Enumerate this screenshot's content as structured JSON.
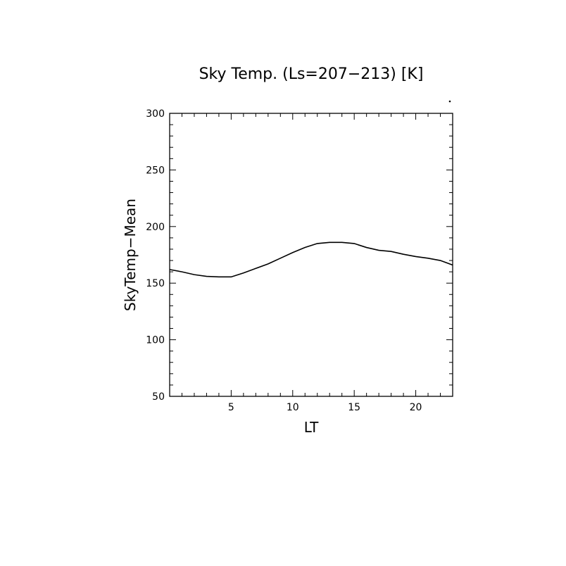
{
  "chart_data": {
    "type": "line",
    "title": "Sky Temp. (Ls=207−213) [K]",
    "xlabel": "LT",
    "ylabel": "SkyTemp−Mean",
    "xlim": [
      0,
      23
    ],
    "ylim": [
      50,
      300
    ],
    "xticks": [
      5,
      10,
      15,
      20
    ],
    "yticks": [
      50,
      100,
      150,
      200,
      250,
      300
    ],
    "grid": false,
    "series": [
      {
        "x": [
          0,
          1,
          2,
          3,
          4,
          5,
          6,
          7,
          8,
          9,
          10,
          11,
          12,
          13,
          14,
          15,
          16,
          17,
          18,
          19,
          20,
          21,
          22,
          23
        ],
        "values": [
          162,
          160,
          157.5,
          156,
          155.5,
          155.5,
          159,
          163,
          167,
          172,
          177,
          181.5,
          185,
          186,
          186,
          185,
          181.5,
          179,
          178,
          175.5,
          173.5,
          172,
          170,
          166
        ]
      }
    ]
  },
  "colors": {
    "line": "#000000",
    "axis": "#000000",
    "background": "#ffffff"
  }
}
